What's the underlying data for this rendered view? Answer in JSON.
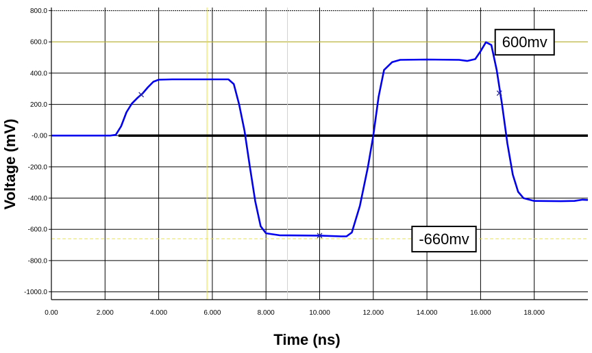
{
  "chart_data": {
    "type": "line",
    "xlabel": "Time (ns)",
    "ylabel": "Voltage (mV)",
    "xlim": [
      0,
      20
    ],
    "ylim": [
      -1050,
      820
    ],
    "x_ticks": [
      0,
      2,
      4,
      6,
      8,
      10,
      12,
      14,
      16,
      18
    ],
    "x_tick_labels": [
      "0.00",
      "2.000",
      "4.000",
      "6.000",
      "8.000",
      "10.000",
      "12.000",
      "14.000",
      "16.000",
      "18.000"
    ],
    "y_ticks": [
      800,
      600,
      400,
      200,
      0,
      -200,
      -400,
      -600,
      -800,
      -1000
    ],
    "y_tick_labels": [
      "800.0",
      "600.0",
      "400.0",
      "200.0",
      "-0.00",
      "-200.0",
      "-400.0",
      "-600.0",
      "-800.0",
      "-1000.0"
    ],
    "grid": true,
    "series": [
      {
        "color": "#0000ee",
        "points": [
          [
            0.0,
            0
          ],
          [
            2.2,
            0
          ],
          [
            2.4,
            5
          ],
          [
            2.6,
            60
          ],
          [
            2.8,
            150
          ],
          [
            3.0,
            205
          ],
          [
            3.2,
            240
          ],
          [
            3.4,
            270
          ],
          [
            3.6,
            310
          ],
          [
            3.8,
            345
          ],
          [
            4.0,
            358
          ],
          [
            4.5,
            360
          ],
          [
            5.5,
            360
          ],
          [
            6.6,
            360
          ],
          [
            6.8,
            330
          ],
          [
            7.0,
            200
          ],
          [
            7.2,
            30
          ],
          [
            7.4,
            -200
          ],
          [
            7.6,
            -420
          ],
          [
            7.8,
            -580
          ],
          [
            8.0,
            -625
          ],
          [
            8.5,
            -638
          ],
          [
            10.0,
            -640
          ],
          [
            10.8,
            -645
          ],
          [
            11.0,
            -645
          ],
          [
            11.2,
            -620
          ],
          [
            11.5,
            -450
          ],
          [
            11.8,
            -200
          ],
          [
            12.0,
            0
          ],
          [
            12.2,
            250
          ],
          [
            12.4,
            420
          ],
          [
            12.7,
            470
          ],
          [
            13.0,
            485
          ],
          [
            14.0,
            487
          ],
          [
            15.2,
            485
          ],
          [
            15.5,
            478
          ],
          [
            15.8,
            490
          ],
          [
            16.0,
            540
          ],
          [
            16.2,
            598
          ],
          [
            16.4,
            580
          ],
          [
            16.6,
            420
          ],
          [
            16.8,
            200
          ],
          [
            17.0,
            -50
          ],
          [
            17.2,
            -250
          ],
          [
            17.4,
            -360
          ],
          [
            17.6,
            -400
          ],
          [
            18.0,
            -418
          ],
          [
            19.0,
            -420
          ],
          [
            19.5,
            -418
          ],
          [
            19.8,
            -410
          ],
          [
            20.0,
            -412
          ]
        ]
      }
    ],
    "markers": [
      {
        "x": 3.35,
        "y": 262
      },
      {
        "x": 10.0,
        "y": -640
      },
      {
        "x": 16.7,
        "y": 272
      }
    ],
    "yellow_lines": {
      "x": [
        5.8,
        8.8
      ],
      "y": [
        600,
        -660
      ]
    },
    "zero_line": {
      "y": 0,
      "from_x": 2.5
    },
    "annotations": [
      {
        "text": "600mv",
        "x": 16.8,
        "y": 600
      },
      {
        "text": "-660mv",
        "x": 13.7,
        "y": -660
      }
    ]
  }
}
